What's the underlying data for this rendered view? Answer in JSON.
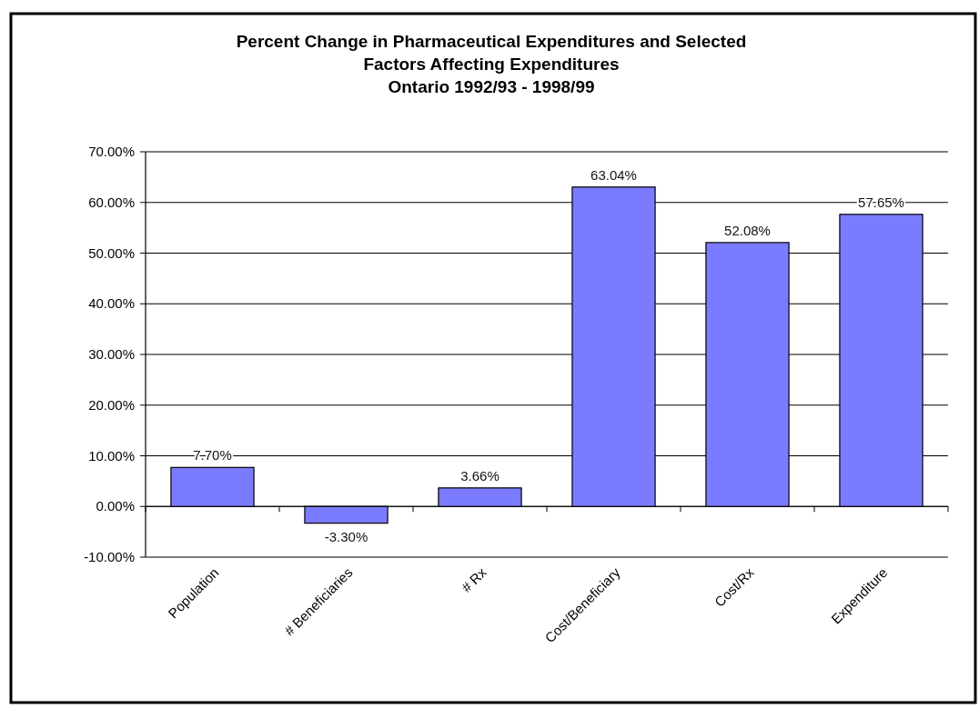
{
  "chart_data": {
    "type": "bar",
    "title": "Percent Change in Pharmaceutical Expenditures and Selected\nFactors Affecting Expenditures\nOntario 1992/93 - 1998/99",
    "categories": [
      "Population",
      "# Beneficiaries",
      "# Rx",
      "Cost/Beneficiary",
      "Cost/Rx",
      "Expenditure"
    ],
    "values": [
      7.7,
      -3.3,
      3.66,
      63.04,
      52.08,
      57.65
    ],
    "value_labels": [
      "7.70%",
      "-3.30%",
      "3.66%",
      "63.04%",
      "52.08%",
      "57.65%"
    ],
    "color": "#7b7bff",
    "ylim": [
      -10,
      70
    ],
    "yticks": [
      {
        "value": -10,
        "label": "-10.00%"
      },
      {
        "value": 0,
        "label": "0.00%"
      },
      {
        "value": 10,
        "label": "10.00%"
      },
      {
        "value": 20,
        "label": "20.00%"
      },
      {
        "value": 30,
        "label": "30.00%"
      },
      {
        "value": 40,
        "label": "40.00%"
      },
      {
        "value": 50,
        "label": "50.00%"
      },
      {
        "value": 60,
        "label": "60.00%"
      },
      {
        "value": 70,
        "label": "70.00%"
      }
    ],
    "grid": "y"
  }
}
